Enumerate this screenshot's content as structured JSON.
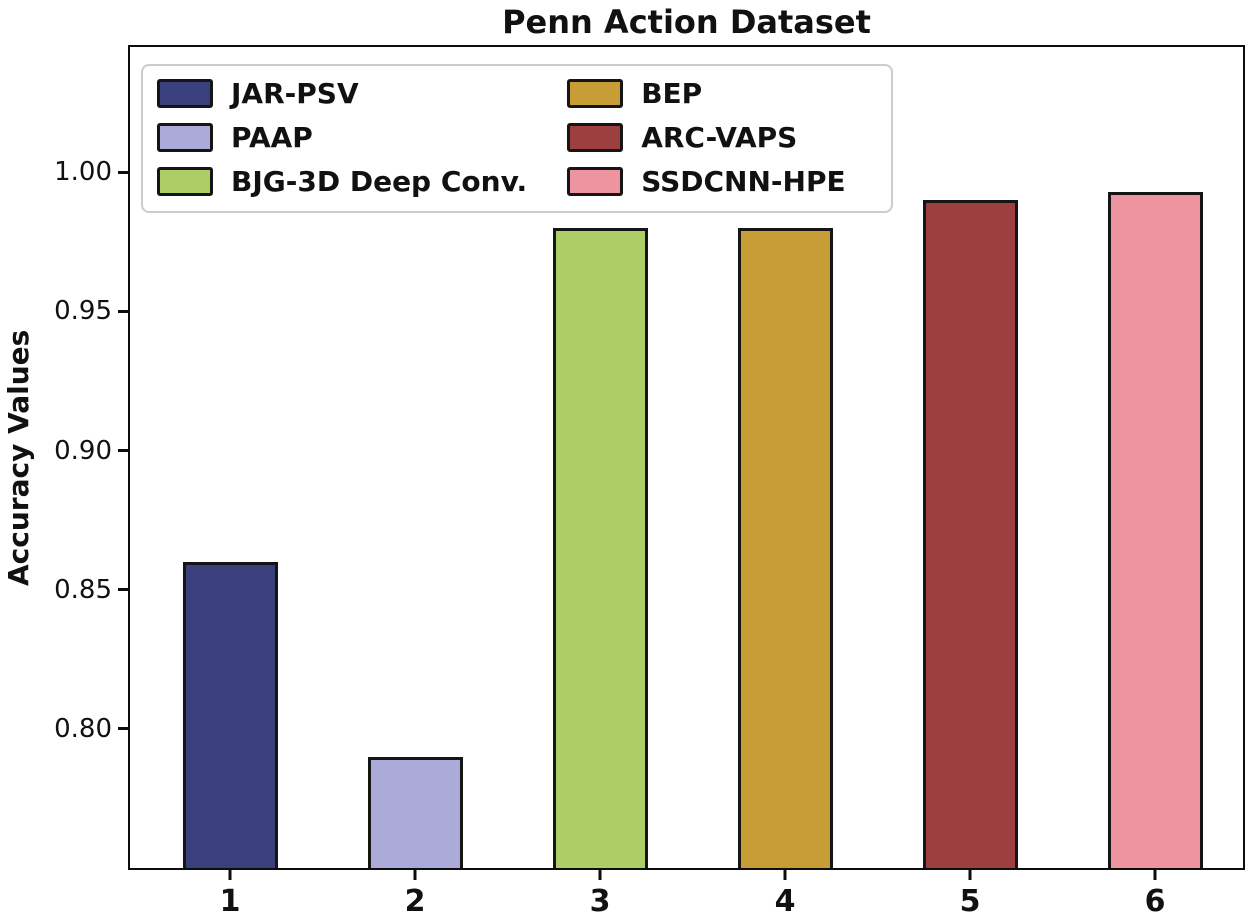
{
  "title": "Penn Action Dataset",
  "chart_data": {
    "type": "bar",
    "title": "Penn Action Dataset",
    "xlabel": "",
    "ylabel": "Accuracy Values",
    "categories": [
      "1",
      "2",
      "3",
      "4",
      "5",
      "6"
    ],
    "series": [
      {
        "name": "JAR-PSV",
        "category": "1",
        "value": 0.86,
        "color": "#3a3f7e"
      },
      {
        "name": "PAAP",
        "category": "2",
        "value": 0.79,
        "color": "#abaad9"
      },
      {
        "name": "BJG-3D Deep Conv.",
        "category": "3",
        "value": 0.98,
        "color": "#adce66"
      },
      {
        "name": "BEP",
        "category": "4",
        "value": 0.98,
        "color": "#c89d36"
      },
      {
        "name": "ARC-VAPS",
        "category": "5",
        "value": 0.99,
        "color": "#9d3f3e"
      },
      {
        "name": "SSDCNN-HPE",
        "category": "6",
        "value": 0.993,
        "color": "#ee93a0"
      }
    ],
    "ylim": [
      0.75,
      1.045
    ],
    "yticks": [
      {
        "label": "1.00",
        "value": 1.0
      },
      {
        "label": "0.95",
        "value": 0.95
      },
      {
        "label": "0.90",
        "value": 0.9
      },
      {
        "label": "0.85",
        "value": 0.85
      },
      {
        "label": "0.80",
        "value": 0.8
      }
    ],
    "grid": false,
    "legend": {
      "position": "upper left",
      "columns": 2,
      "entries": [
        "JAR-PSV",
        "PAAP",
        "BJG-3D Deep Conv.",
        "BEP",
        "ARC-VAPS",
        "SSDCNN-HPE"
      ]
    },
    "bar_edge_color": "#151515",
    "axis_color": "#0d0d0d",
    "text_color": "#111111"
  }
}
